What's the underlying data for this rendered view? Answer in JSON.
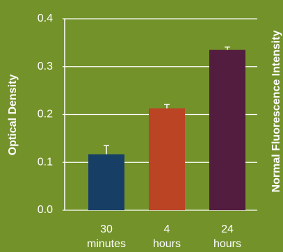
{
  "chart_data": {
    "type": "bar",
    "title": "",
    "ylabel": "Optical Density",
    "y2label": "Normal Fluorescence Intensity",
    "xlabel": "",
    "ylim": [
      0,
      0.4
    ],
    "yticks": [
      "0.0",
      "0.1",
      "0.2",
      "0.3",
      "0.4"
    ],
    "categories": [
      [
        "30",
        "minutes"
      ],
      [
        "4",
        "hours"
      ],
      [
        "24",
        "hours"
      ]
    ],
    "values": [
      0.117,
      0.213,
      0.335
    ],
    "errors": [
      0.018,
      0.008,
      0.006
    ],
    "bar_colors": [
      "#173f66",
      "#bb4425",
      "#521d3f"
    ],
    "grid": true
  },
  "colors": {
    "background": "#73922a",
    "text": "#ffffff",
    "axis": "#ffffff"
  }
}
